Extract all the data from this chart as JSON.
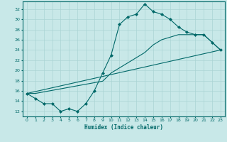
{
  "xlabel": "Humidex (Indice chaleur)",
  "background_color": "#c8e8e8",
  "grid_color": "#aad4d4",
  "line_color": "#006868",
  "xlim": [
    -0.5,
    23.5
  ],
  "ylim": [
    11,
    33.5
  ],
  "yticks": [
    12,
    14,
    16,
    18,
    20,
    22,
    24,
    26,
    28,
    30,
    32
  ],
  "xticks": [
    0,
    1,
    2,
    3,
    4,
    5,
    6,
    7,
    8,
    9,
    10,
    11,
    12,
    13,
    14,
    15,
    16,
    17,
    18,
    19,
    20,
    21,
    22,
    23
  ],
  "series1_x": [
    0,
    1,
    2,
    3,
    4,
    5,
    6,
    7,
    8,
    9,
    10,
    11,
    12,
    13,
    14,
    15,
    16,
    17,
    18,
    19,
    20,
    21,
    22,
    23
  ],
  "series1_y": [
    15.5,
    14.5,
    13.5,
    13.5,
    12.0,
    12.5,
    12.0,
    13.5,
    16.0,
    19.5,
    23.0,
    29.0,
    30.5,
    31.0,
    33.0,
    31.5,
    31.0,
    30.0,
    28.5,
    27.5,
    27.0,
    27.0,
    25.5,
    24.0
  ],
  "series2_x": [
    0,
    1,
    2,
    3,
    4,
    5,
    6,
    7,
    8,
    9,
    10,
    11,
    12,
    13,
    14,
    15,
    16,
    17,
    18,
    19,
    20,
    21,
    22,
    23
  ],
  "series2_y": [
    15.5,
    15.5,
    15.8,
    16.1,
    16.4,
    16.7,
    17.0,
    17.3,
    17.6,
    17.9,
    19.5,
    20.5,
    21.5,
    22.5,
    23.5,
    25.0,
    26.0,
    26.5,
    27.0,
    27.0,
    27.0,
    27.0,
    25.5,
    24.0
  ],
  "series3_x": [
    0,
    23
  ],
  "series3_y": [
    15.5,
    24.0
  ]
}
